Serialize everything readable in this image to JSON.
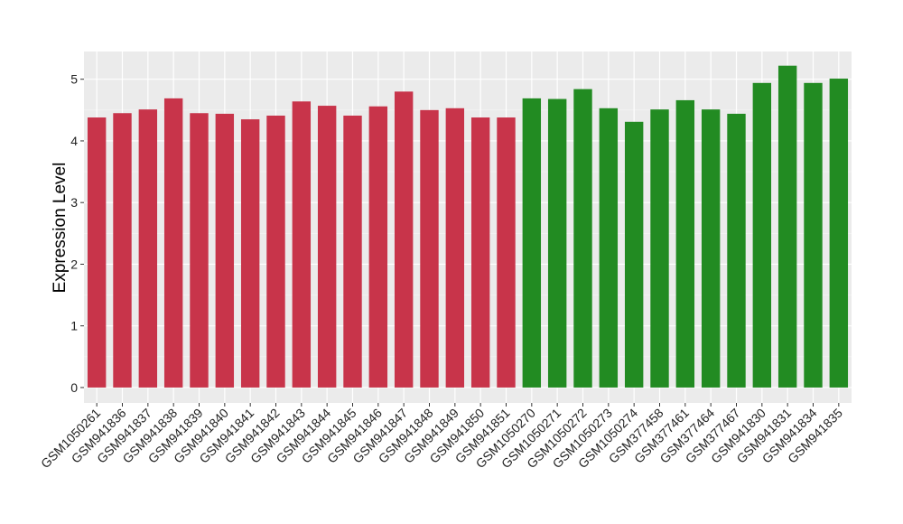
{
  "chart_data": {
    "type": "bar",
    "ylabel": "Expression Level",
    "xlabel": "",
    "ylim": [
      -0.25,
      5.45
    ],
    "yticks": [
      0,
      1,
      2,
      3,
      4,
      5
    ],
    "grid": true,
    "background": "#EBEBEB",
    "categories": [
      "GSM1050261",
      "GSM941836",
      "GSM941837",
      "GSM941838",
      "GSM941839",
      "GSM941840",
      "GSM941841",
      "GSM941842",
      "GSM941843",
      "GSM941844",
      "GSM941845",
      "GSM941846",
      "GSM941847",
      "GSM941848",
      "GSM941849",
      "GSM941850",
      "GSM941851",
      "GSM1050270",
      "GSM1050271",
      "GSM1050272",
      "GSM1050273",
      "GSM1050274",
      "GSM377458",
      "GSM377461",
      "GSM377464",
      "GSM377467",
      "GSM941830",
      "GSM941831",
      "GSM941834",
      "GSM941835"
    ],
    "values": [
      4.38,
      4.45,
      4.51,
      4.69,
      4.45,
      4.44,
      4.35,
      4.41,
      4.64,
      4.57,
      4.41,
      4.56,
      4.8,
      4.5,
      4.53,
      4.38,
      4.38,
      4.69,
      4.68,
      4.84,
      4.53,
      4.31,
      4.51,
      4.66,
      4.51,
      4.44,
      4.94,
      5.22,
      4.94,
      5.01
    ],
    "groups": [
      0,
      0,
      0,
      0,
      0,
      0,
      0,
      0,
      0,
      0,
      0,
      0,
      0,
      0,
      0,
      0,
      0,
      1,
      1,
      1,
      1,
      1,
      1,
      1,
      1,
      1,
      1,
      1,
      1,
      1
    ],
    "group_colors": [
      "#C8344A",
      "#228B22"
    ]
  }
}
